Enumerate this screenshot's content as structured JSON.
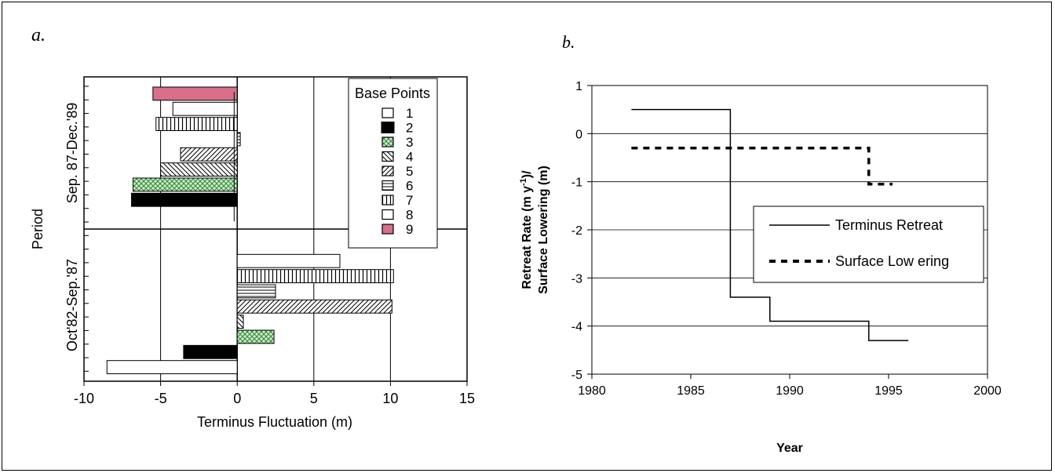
{
  "panels": {
    "a": {
      "label": "a.",
      "chart_data": {
        "type": "bar",
        "orientation": "horizontal",
        "xlabel": "Terminus Fluctuation (m)",
        "ylabel": "Period",
        "xlim": [
          -10,
          15
        ],
        "xticks": [
          "-10",
          "-5",
          "0",
          "5",
          "10",
          "15"
        ],
        "categories": [
          "Sep. 87-Dec.'89",
          "Oct'82-Sep.'87"
        ],
        "legend_title": "Base Points",
        "legend_position": "top-right",
        "series": [
          {
            "name": "1",
            "values": [
              null,
              -8.5
            ],
            "pattern": "white",
            "label_color": "#000000"
          },
          {
            "name": "2",
            "values": [
              -6.9,
              -3.5
            ],
            "pattern": "black",
            "label_color": "#000000"
          },
          {
            "name": "3",
            "values": [
              -6.8,
              2.4
            ],
            "pattern": "green-check",
            "label_color": "#1a7a1a"
          },
          {
            "name": "4",
            "values": [
              -5.0,
              0.4
            ],
            "pattern": "diag-back",
            "label_color": "#000000"
          },
          {
            "name": "5",
            "values": [
              -3.7,
              10.1
            ],
            "pattern": "diag-fwd",
            "label_color": "#000000"
          },
          {
            "name": "6",
            "values": [
              0.2,
              2.5
            ],
            "pattern": "hstripe",
            "label_color": "#000000"
          },
          {
            "name": "7",
            "values": [
              -5.3,
              10.2
            ],
            "pattern": "vstripe",
            "label_color": "#000000"
          },
          {
            "name": "8",
            "values": [
              -4.2,
              6.7
            ],
            "pattern": "white",
            "label_color": "#999999"
          },
          {
            "name": "9",
            "values": [
              -5.5,
              null
            ],
            "pattern": "pink",
            "label_color": "#d07080"
          }
        ],
        "error_bars": [
          {
            "category": "Sep. 87-Dec.'89",
            "x": -0.2,
            "low": -1.5,
            "high": 0.2
          }
        ]
      }
    },
    "b": {
      "label": "b.",
      "chart_data": {
        "type": "line",
        "xlabel": "Year",
        "ylabel_line1": "Retreat Rate (m y",
        "ylabel_sup": "-1",
        "ylabel_line1_end": ")/",
        "ylabel_line2": "Surface Lowering (m)",
        "xlim": [
          1980,
          2000
        ],
        "ylim": [
          -5,
          1
        ],
        "xticks": [
          "1980",
          "1985",
          "1990",
          "1995",
          "2000"
        ],
        "yticks": [
          "1",
          "0",
          "-1",
          "-2",
          "-3",
          "-4",
          "-5"
        ],
        "grid": "horizontal",
        "legend_position": "center-right",
        "series": [
          {
            "name": "Terminus Retreat",
            "style": "solid",
            "x": [
              1982,
              1987,
              1987,
              1989,
              1989,
              1994,
              1994,
              1996
            ],
            "y": [
              0.5,
              0.5,
              -3.4,
              -3.4,
              -3.9,
              -3.9,
              -4.3,
              -4.3
            ]
          },
          {
            "name": "Surface Lowering",
            "legend_text": "Surface Low ering",
            "style": "dashed",
            "x": [
              1982,
              1994,
              1994,
              1995.2
            ],
            "y": [
              -0.3,
              -0.3,
              -1.05,
              -1.05
            ]
          }
        ]
      }
    }
  }
}
